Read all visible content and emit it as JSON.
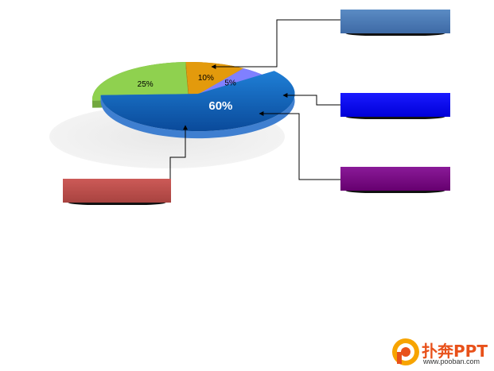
{
  "chart_data": {
    "type": "pie",
    "slices": [
      {
        "label": "60%",
        "value": 60,
        "color": "#1565c0"
      },
      {
        "label": "25%",
        "value": 25,
        "color": "#8fd14f"
      },
      {
        "label": "10%",
        "value": 10,
        "color": "#e39a0c"
      },
      {
        "label": "5%",
        "value": 5,
        "color": "#8080ff"
      }
    ],
    "exploded_slice": "60%",
    "style": "3d",
    "legend": "none",
    "callout_box_colors": [
      "#4a78b0",
      "#0a0aef",
      "#7a0a88",
      "#c0504d"
    ]
  },
  "watermark": {
    "logo_text": "扑奔PPT",
    "url_text": "www.pooban.com",
    "colors": {
      "primary": "#e8511a",
      "secondary": "#f7a400"
    }
  }
}
